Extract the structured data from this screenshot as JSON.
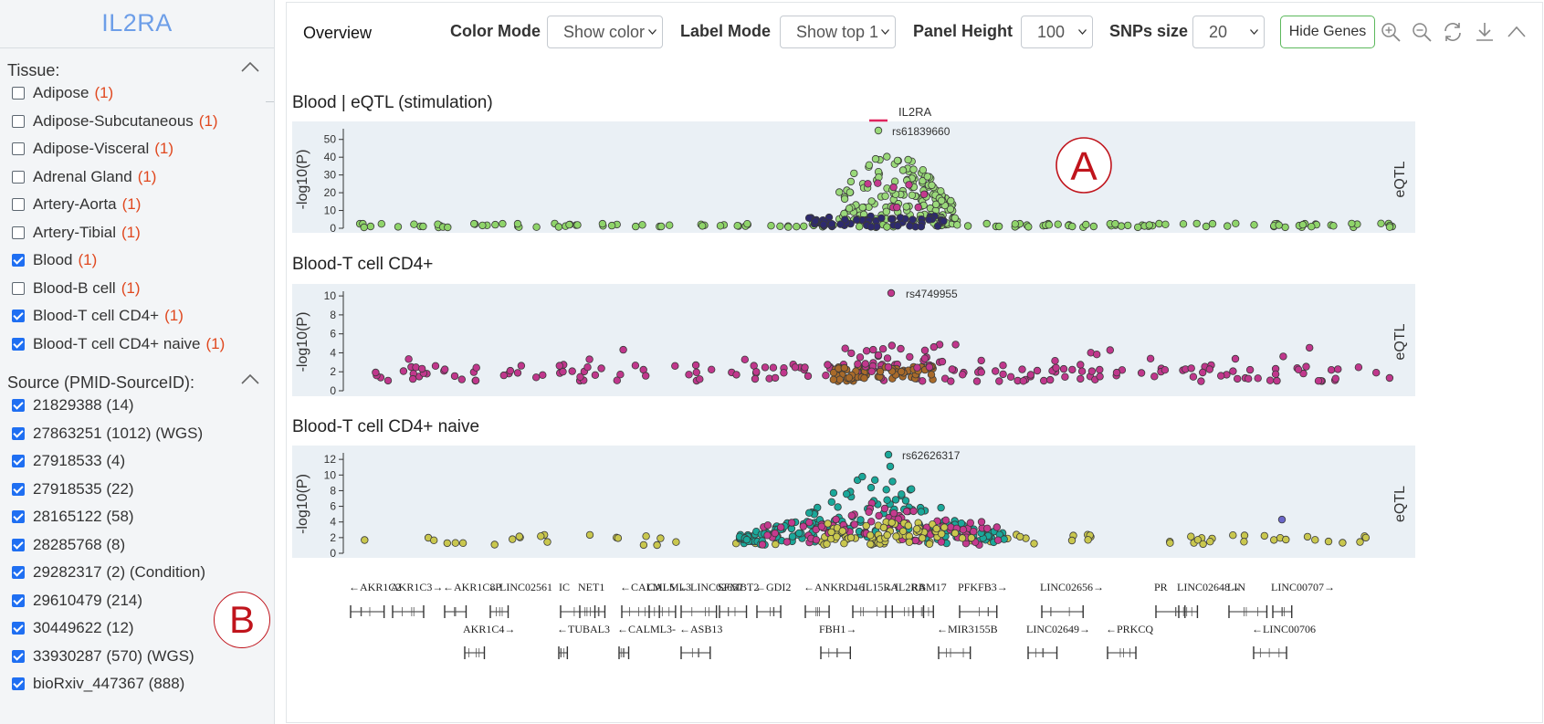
{
  "app": {
    "title": "IL2RA"
  },
  "sidebar": {
    "tissue": {
      "title": "Tissue:",
      "items": [
        {
          "label": "Adipose",
          "count": "(1)",
          "checked": false
        },
        {
          "label": "Adipose-Subcutaneous",
          "count": "(1)",
          "checked": false
        },
        {
          "label": "Adipose-Visceral",
          "count": "(1)",
          "checked": false
        },
        {
          "label": "Adrenal Gland",
          "count": "(1)",
          "checked": false
        },
        {
          "label": "Artery-Aorta",
          "count": "(1)",
          "checked": false
        },
        {
          "label": "Artery-Tibial",
          "count": "(1)",
          "checked": false
        },
        {
          "label": "Blood",
          "count": "(1)",
          "checked": true
        },
        {
          "label": "Blood-B cell",
          "count": "(1)",
          "checked": false
        },
        {
          "label": "Blood-T cell CD4+",
          "count": "(1)",
          "checked": true
        },
        {
          "label": "Blood-T cell CD4+ naive",
          "count": "(1)",
          "checked": true
        }
      ]
    },
    "source": {
      "title": "Source (PMID-SourceID):",
      "items": [
        {
          "label": "21829388 (14)",
          "checked": true
        },
        {
          "label": "27863251 (1012) (WGS)",
          "checked": true
        },
        {
          "label": "27918533 (4)",
          "checked": true
        },
        {
          "label": "27918535 (22)",
          "checked": true
        },
        {
          "label": "28165122 (58)",
          "checked": true
        },
        {
          "label": "28285768 (8)",
          "checked": true
        },
        {
          "label": "29282317 (2) (Condition)",
          "checked": true
        },
        {
          "label": "29610479 (214)",
          "checked": true
        },
        {
          "label": "30449622 (12)",
          "checked": true
        },
        {
          "label": "33930287 (570) (WGS)",
          "checked": true
        },
        {
          "label": "bioRxiv_447367 (888)",
          "checked": true
        }
      ]
    },
    "annotation_b": "B"
  },
  "toolbar": {
    "overview": "Overview",
    "color_mode_label": "Color Mode",
    "color_mode_value": "Show color",
    "label_mode_label": "Label Mode",
    "label_mode_value": "Show top 1",
    "panel_height_label": "Panel Height",
    "panel_height_value": "100",
    "snps_size_label": "SNPs size",
    "snps_size_value": "20",
    "hide_genes": "Hide Genes",
    "icons": [
      "zoom-in-icon",
      "zoom-out-icon",
      "refresh-icon",
      "download-icon",
      "chevron-up-icon"
    ]
  },
  "colors": {
    "title": "#6d9ee8",
    "accent_red": "#e0481f",
    "checkbox": "#1f6ff2",
    "panel_bg": "#eaf0f5",
    "green_button": "#5cb85c",
    "annotation": "#c0141c"
  },
  "chart_data": [
    {
      "type": "scatter",
      "title": "Blood | eQTL (stimulation)",
      "ylabel": "-log10(P)",
      "side_label": "eQTL",
      "ylim": [
        0,
        55
      ],
      "yticks": [
        0,
        10,
        20,
        30,
        40,
        50
      ],
      "legend": {
        "label": "IL2RA",
        "color": "#e0245e",
        "placement": "top-center"
      },
      "top_snp": {
        "label": "rs61839660",
        "y": 55
      },
      "annotation": "A",
      "series": [
        {
          "color": "#8fd46a",
          "role": "background",
          "y_range": [
            0,
            4
          ]
        },
        {
          "color": "#9ad97a",
          "role": "peak",
          "y_range": [
            0,
            44
          ]
        },
        {
          "color": "#2e2a6e",
          "role": "dense",
          "y_range": [
            0,
            6
          ]
        },
        {
          "color": "#c43a8e",
          "role": "minor",
          "y_range": [
            0,
            24
          ]
        }
      ]
    },
    {
      "type": "scatter",
      "title": "Blood-T cell CD4+",
      "ylabel": "-log10(P)",
      "side_label": "eQTL",
      "ylim": [
        0,
        10.3
      ],
      "yticks": [
        0,
        2,
        4,
        6,
        8,
        10
      ],
      "top_snp": {
        "label": "rs4749955",
        "y": 10.3
      },
      "series": [
        {
          "color": "#c0378c",
          "role": "main",
          "y_range": [
            1,
            5.5
          ]
        },
        {
          "color": "#a86a2a",
          "role": "cluster",
          "y_range": [
            1,
            3
          ]
        }
      ]
    },
    {
      "type": "scatter",
      "title": "Blood-T cell CD4+ naive",
      "ylabel": "-log10(P)",
      "side_label": "eQTL",
      "ylim": [
        0,
        12.6
      ],
      "yticks": [
        0,
        2,
        4,
        6,
        8,
        10,
        12
      ],
      "top_snp": {
        "label": "rs62626317",
        "y": 12.6
      },
      "series": [
        {
          "color": "#c9c74e",
          "role": "yellow",
          "y_range": [
            1,
            2.5
          ]
        },
        {
          "color": "#1aa89a",
          "role": "teal",
          "y_range": [
            1,
            11.2
          ]
        },
        {
          "color": "#c43a8e",
          "role": "magenta",
          "y_range": [
            1,
            6
          ]
        },
        {
          "color": "#6a66c8",
          "role": "outlier",
          "y_range": [
            4,
            4.5
          ]
        }
      ]
    }
  ],
  "genes": {
    "row1": [
      {
        "label": "←AKR1C2"
      },
      {
        "label": "AKR1C3→"
      },
      {
        "label": "←AKR1C8P"
      },
      {
        "label": "←LINC02561"
      },
      {
        "label": "IC"
      },
      {
        "label": "NET1"
      },
      {
        "label": "←CALML5"
      },
      {
        "label": "CALML3"
      },
      {
        "label": "←LINC02657"
      },
      {
        "label": "SFMBT2"
      },
      {
        "label": "←GDI2"
      },
      {
        "label": "←ANKRD16"
      },
      {
        "label": "←IL15RA"
      },
      {
        "label": "←IL2RA"
      },
      {
        "label": "RBM17"
      },
      {
        "label": "PFKFB3→"
      },
      {
        "label": "LINC02656→"
      },
      {
        "label": "PR"
      },
      {
        "label": "LINC02648→"
      },
      {
        "label": "LIN"
      },
      {
        "label": "LINC00707→"
      }
    ],
    "row2": [
      {
        "label": "AKR1C4→"
      },
      {
        "label": "←TUBAL3"
      },
      {
        "label": "←CALML3-"
      },
      {
        "label": "←ASB13"
      },
      {
        "label": "FBH1→"
      },
      {
        "label": "←MIR3155B"
      },
      {
        "label": "LINC02649→"
      },
      {
        "label": "←PRKCQ"
      },
      {
        "label": "←LINC00706"
      }
    ]
  }
}
